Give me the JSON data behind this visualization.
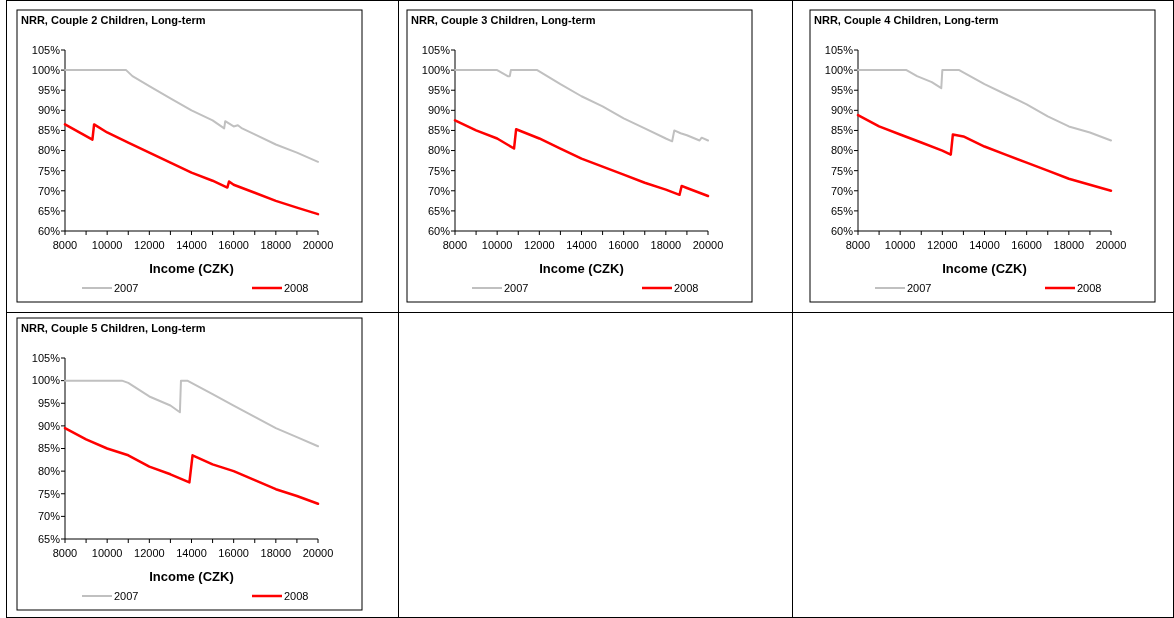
{
  "chart_data": [
    {
      "type": "line",
      "title": "NRR, Couple 2 Children, Long-term",
      "xlabel": "Income (CZK)",
      "legend": "bottom",
      "xlim": [
        8000,
        20000
      ],
      "xticks": [
        8000,
        {
          "value": 9000,
          "label": null
        },
        10000,
        {
          "value": 11000,
          "label": null
        },
        12000,
        {
          "value": 13000,
          "label": null
        },
        14000,
        {
          "value": 15000,
          "label": null
        },
        16000,
        {
          "value": 17000,
          "label": null
        },
        18000,
        {
          "value": 19000,
          "label": null
        },
        20000
      ],
      "ylim": [
        60,
        105
      ],
      "yticks": [
        {
          "value": 60,
          "label": "60%"
        },
        {
          "value": 65,
          "label": "65%"
        },
        {
          "value": 70,
          "label": "70%"
        },
        {
          "value": 75,
          "label": "75%"
        },
        {
          "value": 80,
          "label": "80%"
        },
        {
          "value": 85,
          "label": "85%"
        },
        {
          "value": 90,
          "label": "90%"
        },
        {
          "value": 95,
          "label": "95%"
        },
        {
          "value": 100,
          "label": "100%"
        },
        {
          "value": 105,
          "label": "105%"
        }
      ],
      "series": [
        {
          "name": "2007",
          "color": "#c0c0c0",
          "x": [
            8000,
            10900,
            11200,
            12000,
            13000,
            14000,
            15000,
            15550,
            15600,
            16000,
            16200,
            16400,
            17000,
            18000,
            19000,
            20000
          ],
          "values": [
            100,
            100,
            98.5,
            96,
            93,
            90,
            87.5,
            85.5,
            87.3,
            86,
            86.3,
            85.5,
            84,
            81.5,
            79.5,
            77.2
          ]
        },
        {
          "name": "2008",
          "color": "#ff0000",
          "x": [
            8000,
            9300,
            9380,
            10000,
            11000,
            12000,
            13000,
            14000,
            15000,
            15700,
            15780,
            16000,
            17000,
            18000,
            19000,
            20000
          ],
          "values": [
            86.5,
            82.7,
            86.5,
            84.5,
            82,
            79.5,
            77,
            74.5,
            72.5,
            70.8,
            72.3,
            71.5,
            69.5,
            67.5,
            65.8,
            64.2
          ]
        }
      ]
    },
    {
      "type": "line",
      "title": "NRR, Couple 3 Children, Long-term",
      "xlabel": "Income (CZK)",
      "legend": "bottom",
      "xlim": [
        8000,
        20000
      ],
      "xticks": [
        8000,
        {
          "value": 9000,
          "label": null
        },
        10000,
        {
          "value": 11000,
          "label": null
        },
        12000,
        {
          "value": 13000,
          "label": null
        },
        14000,
        {
          "value": 15000,
          "label": null
        },
        16000,
        {
          "value": 17000,
          "label": null
        },
        18000,
        {
          "value": 19000,
          "label": null
        },
        20000
      ],
      "ylim": [
        60,
        105
      ],
      "yticks": [
        {
          "value": 60,
          "label": "60%"
        },
        {
          "value": 65,
          "label": "65%"
        },
        {
          "value": 70,
          "label": "70%"
        },
        {
          "value": 75,
          "label": "75%"
        },
        {
          "value": 80,
          "label": "80%"
        },
        {
          "value": 85,
          "label": "85%"
        },
        {
          "value": 90,
          "label": "90%"
        },
        {
          "value": 95,
          "label": "95%"
        },
        {
          "value": 100,
          "label": "100%"
        },
        {
          "value": 105,
          "label": "105%"
        }
      ],
      "series": [
        {
          "name": "2007",
          "color": "#c0c0c0",
          "x": [
            8000,
            10000,
            10500,
            10600,
            10650,
            11900,
            13000,
            14000,
            15000,
            16000,
            17000,
            18000,
            18300,
            18400,
            18700,
            19000,
            19600,
            19700,
            20000
          ],
          "values": [
            100,
            100,
            98.5,
            98.5,
            100,
            100,
            96.5,
            93.5,
            91,
            88,
            85.5,
            83,
            82.3,
            85,
            84.3,
            83.8,
            82.5,
            83.2,
            82.5
          ]
        },
        {
          "name": "2008",
          "color": "#ff0000",
          "x": [
            8000,
            9000,
            10000,
            10800,
            10900,
            12000,
            13000,
            14000,
            15000,
            16000,
            17000,
            18000,
            18650,
            18750,
            19000,
            20000
          ],
          "values": [
            87.5,
            85,
            83,
            80.5,
            85.3,
            83,
            80.5,
            78,
            76,
            74,
            72,
            70.3,
            69,
            71.2,
            70.7,
            68.7
          ]
        }
      ]
    },
    {
      "type": "line",
      "title": "NRR, Couple 4 Children, Long-term",
      "xlabel": "Income (CZK)",
      "legend": "bottom",
      "xlim": [
        8000,
        20000
      ],
      "xticks": [
        8000,
        {
          "value": 9000,
          "label": null
        },
        10000,
        {
          "value": 11000,
          "label": null
        },
        12000,
        {
          "value": 13000,
          "label": null
        },
        14000,
        {
          "value": 15000,
          "label": null
        },
        16000,
        {
          "value": 17000,
          "label": null
        },
        18000,
        {
          "value": 19000,
          "label": null
        },
        20000
      ],
      "ylim": [
        60,
        105
      ],
      "yticks": [
        {
          "value": 60,
          "label": "60%"
        },
        {
          "value": 65,
          "label": "65%"
        },
        {
          "value": 70,
          "label": "70%"
        },
        {
          "value": 75,
          "label": "75%"
        },
        {
          "value": 80,
          "label": "80%"
        },
        {
          "value": 85,
          "label": "85%"
        },
        {
          "value": 90,
          "label": "90%"
        },
        {
          "value": 95,
          "label": "95%"
        },
        {
          "value": 100,
          "label": "100%"
        },
        {
          "value": 105,
          "label": "105%"
        }
      ],
      "series": [
        {
          "name": "2007",
          "color": "#c0c0c0",
          "x": [
            8000,
            10300,
            10800,
            11500,
            11950,
            12000,
            12800,
            14000,
            15000,
            16000,
            17000,
            18000,
            19000,
            20000
          ],
          "values": [
            100,
            100,
            98.5,
            97,
            95.5,
            100,
            100,
            96.5,
            94,
            91.5,
            88.5,
            86,
            84.5,
            82.5
          ]
        },
        {
          "name": "2008",
          "color": "#ff0000",
          "x": [
            8000,
            9000,
            10000,
            11000,
            12000,
            12400,
            12500,
            13000,
            14000,
            15000,
            16000,
            17000,
            18000,
            19000,
            20000
          ],
          "values": [
            88.8,
            86,
            84,
            82,
            80,
            79,
            84,
            83.5,
            81,
            79,
            77,
            75,
            73,
            71.5,
            70
          ]
        }
      ]
    },
    {
      "type": "line",
      "title": "NRR, Couple 5 Children, Long-term",
      "xlabel": "Income (CZK)",
      "legend": "bottom",
      "xlim": [
        8000,
        20000
      ],
      "xticks": [
        8000,
        {
          "value": 9000,
          "label": null
        },
        10000,
        {
          "value": 11000,
          "label": null
        },
        12000,
        {
          "value": 13000,
          "label": null
        },
        14000,
        {
          "value": 15000,
          "label": null
        },
        16000,
        {
          "value": 17000,
          "label": null
        },
        18000,
        {
          "value": 19000,
          "label": null
        },
        20000
      ],
      "ylim": [
        65,
        105
      ],
      "yticks": [
        {
          "value": 65,
          "label": "65%"
        },
        {
          "value": 70,
          "label": "70%"
        },
        {
          "value": 75,
          "label": "75%"
        },
        {
          "value": 80,
          "label": "80%"
        },
        {
          "value": 85,
          "label": "85%"
        },
        {
          "value": 90,
          "label": "90%"
        },
        {
          "value": 95,
          "label": "95%"
        },
        {
          "value": 100,
          "label": "100%"
        },
        {
          "value": 105,
          "label": "105%"
        }
      ],
      "series": [
        {
          "name": "2007",
          "color": "#c0c0c0",
          "x": [
            8000,
            10700,
            11000,
            12000,
            13000,
            13450,
            13500,
            13800,
            14000,
            15000,
            16000,
            17000,
            18000,
            19000,
            20000
          ],
          "values": [
            100,
            100,
            99.5,
            96.5,
            94.5,
            93,
            100,
            100,
            99.5,
            97,
            94.5,
            92,
            89.5,
            87.5,
            85.5
          ]
        },
        {
          "name": "2008",
          "color": "#ff0000",
          "x": [
            8000,
            9000,
            10000,
            11000,
            12000,
            13000,
            13900,
            14050,
            15000,
            16000,
            17000,
            18000,
            19000,
            20000
          ],
          "values": [
            89.5,
            87,
            85,
            83.5,
            81,
            79.3,
            77.5,
            83.5,
            81.5,
            80,
            78,
            76,
            74.5,
            72.8
          ]
        }
      ]
    }
  ]
}
